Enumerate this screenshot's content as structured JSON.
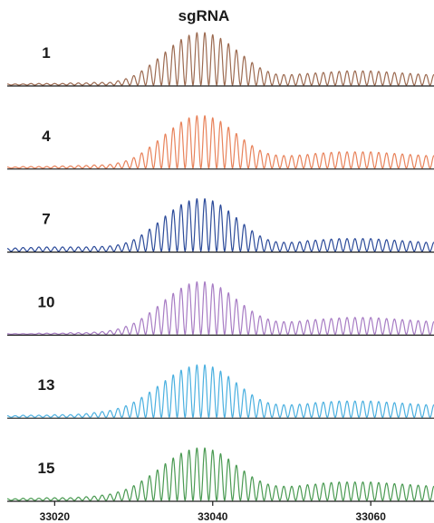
{
  "chart_data": {
    "type": "line",
    "title": "sgRNA",
    "xlabel": "",
    "ylabel": "",
    "xlim": [
      33014,
      33068
    ],
    "x_ticks": [
      33020,
      33040,
      33060
    ],
    "x_tick_labels": [
      "33020",
      "33040",
      "33060"
    ],
    "y_axis_shown": false,
    "grid": false,
    "legend": "none",
    "peak_spacing": 1,
    "series": [
      {
        "label": "1",
        "color": "#9c6a50",
        "peak_centers": [
          33014,
          33015,
          33016,
          33017,
          33018,
          33019,
          33020,
          33021,
          33022,
          33023,
          33024,
          33025,
          33026,
          33027,
          33028,
          33029,
          33030,
          33031,
          33032,
          33033,
          33034,
          33035,
          33036,
          33037,
          33038,
          33039,
          33040,
          33041,
          33042,
          33043,
          33044,
          33045,
          33046,
          33047,
          33048,
          33049,
          33050,
          33051,
          33052,
          33053,
          33054,
          33055,
          33056,
          33057,
          33058,
          33059,
          33060,
          33061,
          33062,
          33063,
          33064,
          33065,
          33066,
          33067,
          33068
        ],
        "relative_intensity": [
          0.02,
          0.02,
          0.02,
          0.03,
          0.03,
          0.03,
          0.03,
          0.03,
          0.04,
          0.04,
          0.04,
          0.05,
          0.05,
          0.05,
          0.08,
          0.12,
          0.18,
          0.27,
          0.38,
          0.5,
          0.63,
          0.76,
          0.87,
          0.95,
          1.0,
          1.0,
          0.96,
          0.89,
          0.79,
          0.67,
          0.55,
          0.43,
          0.33,
          0.26,
          0.21,
          0.2,
          0.2,
          0.21,
          0.22,
          0.23,
          0.24,
          0.25,
          0.26,
          0.27,
          0.27,
          0.27,
          0.27,
          0.26,
          0.25,
          0.24,
          0.23,
          0.22,
          0.21,
          0.2,
          0.2
        ]
      },
      {
        "label": "4",
        "color": "#e8825a",
        "peak_centers": [
          33014,
          33015,
          33016,
          33017,
          33018,
          33019,
          33020,
          33021,
          33022,
          33023,
          33024,
          33025,
          33026,
          33027,
          33028,
          33029,
          33030,
          33031,
          33032,
          33033,
          33034,
          33035,
          33036,
          33037,
          33038,
          33039,
          33040,
          33041,
          33042,
          33043,
          33044,
          33045,
          33046,
          33047,
          33048,
          33049,
          33050,
          33051,
          33052,
          33053,
          33054,
          33055,
          33056,
          33057,
          33058,
          33059,
          33060,
          33061,
          33062,
          33063,
          33064,
          33065,
          33066,
          33067,
          33068
        ],
        "relative_intensity": [
          0.02,
          0.02,
          0.03,
          0.03,
          0.03,
          0.03,
          0.04,
          0.04,
          0.04,
          0.05,
          0.05,
          0.06,
          0.06,
          0.07,
          0.1,
          0.14,
          0.2,
          0.29,
          0.4,
          0.52,
          0.65,
          0.77,
          0.88,
          0.96,
          1.0,
          1.0,
          0.96,
          0.89,
          0.78,
          0.66,
          0.54,
          0.43,
          0.34,
          0.28,
          0.25,
          0.24,
          0.24,
          0.25,
          0.26,
          0.28,
          0.29,
          0.3,
          0.31,
          0.31,
          0.31,
          0.31,
          0.31,
          0.3,
          0.29,
          0.28,
          0.27,
          0.26,
          0.25,
          0.24,
          0.24
        ]
      },
      {
        "label": "7",
        "color": "#2c4b9a",
        "peak_centers": [
          33014,
          33015,
          33016,
          33017,
          33018,
          33019,
          33020,
          33021,
          33022,
          33023,
          33024,
          33025,
          33026,
          33027,
          33028,
          33029,
          33030,
          33031,
          33032,
          33033,
          33034,
          33035,
          33036,
          33037,
          33038,
          33039,
          33040,
          33041,
          33042,
          33043,
          33044,
          33045,
          33046,
          33047,
          33048,
          33049,
          33050,
          33051,
          33052,
          33053,
          33054,
          33055,
          33056,
          33057,
          33058,
          33059,
          33060,
          33061,
          33062,
          33063,
          33064,
          33065,
          33066,
          33067,
          33068
        ],
        "relative_intensity": [
          0.05,
          0.06,
          0.07,
          0.07,
          0.08,
          0.08,
          0.08,
          0.08,
          0.08,
          0.08,
          0.08,
          0.09,
          0.09,
          0.1,
          0.12,
          0.16,
          0.22,
          0.31,
          0.42,
          0.54,
          0.67,
          0.79,
          0.89,
          0.96,
          1.0,
          1.0,
          0.96,
          0.88,
          0.77,
          0.64,
          0.51,
          0.39,
          0.29,
          0.22,
          0.18,
          0.17,
          0.17,
          0.18,
          0.2,
          0.21,
          0.22,
          0.23,
          0.24,
          0.24,
          0.24,
          0.24,
          0.24,
          0.23,
          0.22,
          0.21,
          0.2,
          0.19,
          0.18,
          0.17,
          0.17
        ]
      },
      {
        "label": "10",
        "color": "#a77cc4",
        "peak_centers": [
          33014,
          33015,
          33016,
          33017,
          33018,
          33019,
          33020,
          33021,
          33022,
          33023,
          33024,
          33025,
          33026,
          33027,
          33028,
          33029,
          33030,
          33031,
          33032,
          33033,
          33034,
          33035,
          33036,
          33037,
          33038,
          33039,
          33040,
          33041,
          33042,
          33043,
          33044,
          33045,
          33046,
          33047,
          33048,
          33049,
          33050,
          33051,
          33052,
          33053,
          33054,
          33055,
          33056,
          33057,
          33058,
          33059,
          33060,
          33061,
          33062,
          33063,
          33064,
          33065,
          33066,
          33067,
          33068
        ],
        "relative_intensity": [
          0.01,
          0.01,
          0.01,
          0.01,
          0.02,
          0.02,
          0.02,
          0.02,
          0.03,
          0.03,
          0.03,
          0.04,
          0.05,
          0.07,
          0.1,
          0.15,
          0.21,
          0.3,
          0.41,
          0.53,
          0.66,
          0.78,
          0.88,
          0.96,
          1.0,
          1.0,
          0.96,
          0.89,
          0.79,
          0.67,
          0.55,
          0.44,
          0.35,
          0.29,
          0.25,
          0.24,
          0.24,
          0.25,
          0.27,
          0.28,
          0.29,
          0.3,
          0.31,
          0.32,
          0.32,
          0.32,
          0.32,
          0.31,
          0.3,
          0.29,
          0.28,
          0.27,
          0.26,
          0.25,
          0.24
        ]
      },
      {
        "label": "13",
        "color": "#4ab0e0",
        "peak_centers": [
          33014,
          33015,
          33016,
          33017,
          33018,
          33019,
          33020,
          33021,
          33022,
          33023,
          33024,
          33025,
          33026,
          33027,
          33028,
          33029,
          33030,
          33031,
          33032,
          33033,
          33034,
          33035,
          33036,
          33037,
          33038,
          33039,
          33040,
          33041,
          33042,
          33043,
          33044,
          33045,
          33046,
          33047,
          33048,
          33049,
          33050,
          33051,
          33052,
          33053,
          33054,
          33055,
          33056,
          33057,
          33058,
          33059,
          33060,
          33061,
          33062,
          33063,
          33064,
          33065,
          33066,
          33067,
          33068
        ],
        "relative_intensity": [
          0.03,
          0.03,
          0.04,
          0.04,
          0.04,
          0.04,
          0.05,
          0.05,
          0.05,
          0.06,
          0.07,
          0.09,
          0.11,
          0.13,
          0.17,
          0.22,
          0.29,
          0.38,
          0.48,
          0.59,
          0.7,
          0.81,
          0.9,
          0.96,
          1.0,
          1.0,
          0.96,
          0.88,
          0.78,
          0.66,
          0.54,
          0.43,
          0.34,
          0.28,
          0.25,
          0.24,
          0.24,
          0.25,
          0.26,
          0.28,
          0.29,
          0.3,
          0.31,
          0.31,
          0.31,
          0.31,
          0.31,
          0.3,
          0.29,
          0.28,
          0.27,
          0.26,
          0.25,
          0.24,
          0.24
        ]
      },
      {
        "label": "15",
        "color": "#4a9a52",
        "peak_centers": [
          33014,
          33015,
          33016,
          33017,
          33018,
          33019,
          33020,
          33021,
          33022,
          33023,
          33024,
          33025,
          33026,
          33027,
          33028,
          33029,
          33030,
          33031,
          33032,
          33033,
          33034,
          33035,
          33036,
          33037,
          33038,
          33039,
          33040,
          33041,
          33042,
          33043,
          33044,
          33045,
          33046,
          33047,
          33048,
          33049,
          33050,
          33051,
          33052,
          33053,
          33054,
          33055,
          33056,
          33057,
          33058,
          33059,
          33060,
          33061,
          33062,
          33063,
          33064,
          33065,
          33066,
          33067,
          33068
        ],
        "relative_intensity": [
          0.03,
          0.03,
          0.04,
          0.04,
          0.04,
          0.05,
          0.05,
          0.05,
          0.05,
          0.06,
          0.07,
          0.08,
          0.1,
          0.12,
          0.16,
          0.21,
          0.28,
          0.37,
          0.47,
          0.58,
          0.7,
          0.81,
          0.9,
          0.96,
          1.0,
          1.0,
          0.96,
          0.89,
          0.79,
          0.67,
          0.56,
          0.45,
          0.37,
          0.31,
          0.28,
          0.27,
          0.27,
          0.28,
          0.3,
          0.31,
          0.33,
          0.34,
          0.35,
          0.35,
          0.35,
          0.35,
          0.35,
          0.34,
          0.33,
          0.32,
          0.31,
          0.3,
          0.29,
          0.28,
          0.27
        ]
      }
    ]
  }
}
